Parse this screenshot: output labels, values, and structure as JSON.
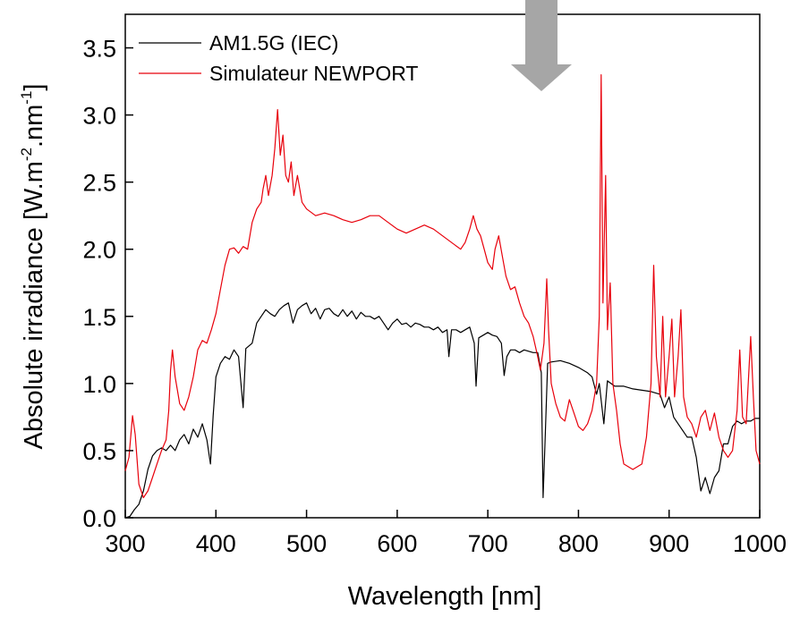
{
  "chart_data": {
    "type": "line",
    "title": "",
    "xlabel": "Wavelength [nm]",
    "ylabel_parts": [
      "Absolute irradiance [W.m",
      "-2",
      ".nm",
      "-1",
      "]"
    ],
    "xlim": [
      300,
      1000
    ],
    "ylim": [
      0.0,
      3.75
    ],
    "xticks": [
      300,
      400,
      500,
      600,
      700,
      800,
      900,
      1000
    ],
    "yticks": [
      "0.0",
      "0.5",
      "1.0",
      "1.5",
      "2.0",
      "2.5",
      "3.0",
      "3.5"
    ],
    "grid": false,
    "legend_position": "top-left",
    "annotation": "gray down-arrow at top near 760 nm",
    "series": [
      {
        "name": "AM1.5G (IEC)",
        "color": "#000000",
        "points": [
          [
            300,
            0.0
          ],
          [
            305,
            0.01
          ],
          [
            310,
            0.06
          ],
          [
            315,
            0.1
          ],
          [
            320,
            0.2
          ],
          [
            325,
            0.36
          ],
          [
            330,
            0.46
          ],
          [
            335,
            0.5
          ],
          [
            340,
            0.52
          ],
          [
            345,
            0.5
          ],
          [
            350,
            0.54
          ],
          [
            355,
            0.5
          ],
          [
            360,
            0.58
          ],
          [
            365,
            0.62
          ],
          [
            370,
            0.55
          ],
          [
            375,
            0.66
          ],
          [
            380,
            0.6
          ],
          [
            385,
            0.7
          ],
          [
            390,
            0.58
          ],
          [
            394,
            0.4
          ],
          [
            397,
            0.76
          ],
          [
            400,
            1.05
          ],
          [
            405,
            1.15
          ],
          [
            410,
            1.2
          ],
          [
            415,
            1.18
          ],
          [
            420,
            1.25
          ],
          [
            425,
            1.2
          ],
          [
            430,
            0.82
          ],
          [
            433,
            1.26
          ],
          [
            440,
            1.3
          ],
          [
            445,
            1.45
          ],
          [
            450,
            1.5
          ],
          [
            455,
            1.55
          ],
          [
            460,
            1.52
          ],
          [
            465,
            1.5
          ],
          [
            470,
            1.55
          ],
          [
            475,
            1.58
          ],
          [
            480,
            1.6
          ],
          [
            485,
            1.45
          ],
          [
            490,
            1.55
          ],
          [
            495,
            1.58
          ],
          [
            500,
            1.6
          ],
          [
            505,
            1.52
          ],
          [
            510,
            1.56
          ],
          [
            515,
            1.48
          ],
          [
            520,
            1.55
          ],
          [
            525,
            1.56
          ],
          [
            530,
            1.52
          ],
          [
            535,
            1.5
          ],
          [
            540,
            1.55
          ],
          [
            545,
            1.5
          ],
          [
            550,
            1.54
          ],
          [
            555,
            1.48
          ],
          [
            560,
            1.53
          ],
          [
            565,
            1.5
          ],
          [
            570,
            1.5
          ],
          [
            575,
            1.48
          ],
          [
            580,
            1.5
          ],
          [
            585,
            1.45
          ],
          [
            590,
            1.4
          ],
          [
            595,
            1.45
          ],
          [
            600,
            1.48
          ],
          [
            605,
            1.44
          ],
          [
            610,
            1.45
          ],
          [
            615,
            1.42
          ],
          [
            620,
            1.45
          ],
          [
            625,
            1.44
          ],
          [
            630,
            1.42
          ],
          [
            635,
            1.42
          ],
          [
            640,
            1.4
          ],
          [
            645,
            1.42
          ],
          [
            650,
            1.38
          ],
          [
            655,
            1.4
          ],
          [
            657,
            1.2
          ],
          [
            660,
            1.4
          ],
          [
            665,
            1.4
          ],
          [
            670,
            1.38
          ],
          [
            675,
            1.4
          ],
          [
            680,
            1.42
          ],
          [
            685,
            1.3
          ],
          [
            687,
            0.98
          ],
          [
            690,
            1.34
          ],
          [
            695,
            1.36
          ],
          [
            700,
            1.38
          ],
          [
            705,
            1.36
          ],
          [
            710,
            1.35
          ],
          [
            715,
            1.3
          ],
          [
            718,
            1.06
          ],
          [
            721,
            1.2
          ],
          [
            725,
            1.25
          ],
          [
            730,
            1.25
          ],
          [
            735,
            1.23
          ],
          [
            740,
            1.25
          ],
          [
            745,
            1.24
          ],
          [
            750,
            1.23
          ],
          [
            755,
            1.23
          ],
          [
            759,
            1.08
          ],
          [
            761,
            0.15
          ],
          [
            763,
            0.55
          ],
          [
            766,
            1.15
          ],
          [
            770,
            1.16
          ],
          [
            780,
            1.17
          ],
          [
            790,
            1.15
          ],
          [
            800,
            1.12
          ],
          [
            810,
            1.08
          ],
          [
            815,
            1.05
          ],
          [
            820,
            0.92
          ],
          [
            823,
            1.0
          ],
          [
            828,
            0.7
          ],
          [
            832,
            1.02
          ],
          [
            840,
            0.98
          ],
          [
            850,
            0.98
          ],
          [
            860,
            0.96
          ],
          [
            870,
            0.95
          ],
          [
            880,
            0.94
          ],
          [
            890,
            0.92
          ],
          [
            895,
            0.82
          ],
          [
            900,
            0.9
          ],
          [
            905,
            0.75
          ],
          [
            910,
            0.7
          ],
          [
            920,
            0.6
          ],
          [
            925,
            0.6
          ],
          [
            930,
            0.45
          ],
          [
            935,
            0.2
          ],
          [
            940,
            0.3
          ],
          [
            945,
            0.18
          ],
          [
            950,
            0.3
          ],
          [
            955,
            0.35
          ],
          [
            960,
            0.55
          ],
          [
            965,
            0.55
          ],
          [
            970,
            0.68
          ],
          [
            975,
            0.72
          ],
          [
            980,
            0.7
          ],
          [
            985,
            0.72
          ],
          [
            990,
            0.72
          ],
          [
            995,
            0.74
          ],
          [
            1000,
            0.74
          ]
        ]
      },
      {
        "name": "Simulateur NEWPORT",
        "color": "#e8000b",
        "points": [
          [
            300,
            0.35
          ],
          [
            304,
            0.45
          ],
          [
            308,
            0.76
          ],
          [
            311,
            0.62
          ],
          [
            315,
            0.25
          ],
          [
            320,
            0.15
          ],
          [
            325,
            0.2
          ],
          [
            330,
            0.3
          ],
          [
            335,
            0.4
          ],
          [
            340,
            0.5
          ],
          [
            345,
            0.58
          ],
          [
            348,
            0.8
          ],
          [
            350,
            1.1
          ],
          [
            352,
            1.25
          ],
          [
            355,
            1.05
          ],
          [
            360,
            0.85
          ],
          [
            365,
            0.8
          ],
          [
            370,
            0.9
          ],
          [
            375,
            1.05
          ],
          [
            380,
            1.25
          ],
          [
            385,
            1.32
          ],
          [
            390,
            1.3
          ],
          [
            395,
            1.4
          ],
          [
            400,
            1.52
          ],
          [
            405,
            1.7
          ],
          [
            410,
            1.88
          ],
          [
            415,
            2.0
          ],
          [
            420,
            2.01
          ],
          [
            425,
            1.97
          ],
          [
            430,
            2.02
          ],
          [
            435,
            2.0
          ],
          [
            440,
            2.2
          ],
          [
            445,
            2.3
          ],
          [
            450,
            2.35
          ],
          [
            452,
            2.45
          ],
          [
            455,
            2.55
          ],
          [
            458,
            2.4
          ],
          [
            462,
            2.55
          ],
          [
            465,
            2.75
          ],
          [
            468,
            3.04
          ],
          [
            471,
            2.7
          ],
          [
            474,
            2.85
          ],
          [
            477,
            2.55
          ],
          [
            480,
            2.5
          ],
          [
            483,
            2.65
          ],
          [
            486,
            2.4
          ],
          [
            490,
            2.55
          ],
          [
            495,
            2.35
          ],
          [
            500,
            2.3
          ],
          [
            510,
            2.25
          ],
          [
            520,
            2.27
          ],
          [
            530,
            2.25
          ],
          [
            540,
            2.22
          ],
          [
            550,
            2.2
          ],
          [
            560,
            2.22
          ],
          [
            570,
            2.25
          ],
          [
            580,
            2.25
          ],
          [
            590,
            2.2
          ],
          [
            600,
            2.15
          ],
          [
            610,
            2.12
          ],
          [
            620,
            2.15
          ],
          [
            630,
            2.18
          ],
          [
            640,
            2.15
          ],
          [
            650,
            2.1
          ],
          [
            660,
            2.05
          ],
          [
            670,
            2.0
          ],
          [
            675,
            2.05
          ],
          [
            680,
            2.15
          ],
          [
            684,
            2.25
          ],
          [
            688,
            2.15
          ],
          [
            692,
            2.1
          ],
          [
            696,
            2.0
          ],
          [
            700,
            1.9
          ],
          [
            705,
            1.85
          ],
          [
            708,
            2.0
          ],
          [
            712,
            2.1
          ],
          [
            716,
            1.95
          ],
          [
            720,
            1.8
          ],
          [
            725,
            1.7
          ],
          [
            730,
            1.72
          ],
          [
            735,
            1.6
          ],
          [
            740,
            1.5
          ],
          [
            745,
            1.45
          ],
          [
            750,
            1.35
          ],
          [
            755,
            1.2
          ],
          [
            758,
            1.1
          ],
          [
            762,
            1.3
          ],
          [
            765,
            1.78
          ],
          [
            767,
            1.4
          ],
          [
            770,
            1.0
          ],
          [
            775,
            0.85
          ],
          [
            780,
            0.75
          ],
          [
            785,
            0.72
          ],
          [
            790,
            0.88
          ],
          [
            795,
            0.78
          ],
          [
            800,
            0.68
          ],
          [
            805,
            0.65
          ],
          [
            810,
            0.7
          ],
          [
            815,
            0.8
          ],
          [
            820,
            1.0
          ],
          [
            823,
            1.5
          ],
          [
            825,
            3.3
          ],
          [
            827,
            1.6
          ],
          [
            830,
            2.55
          ],
          [
            832,
            1.4
          ],
          [
            835,
            1.75
          ],
          [
            838,
            1.0
          ],
          [
            842,
            0.8
          ],
          [
            846,
            0.55
          ],
          [
            850,
            0.4
          ],
          [
            860,
            0.36
          ],
          [
            870,
            0.4
          ],
          [
            875,
            0.6
          ],
          [
            880,
            1.0
          ],
          [
            883,
            1.88
          ],
          [
            886,
            1.2
          ],
          [
            890,
            0.9
          ],
          [
            893,
            1.5
          ],
          [
            896,
            0.9
          ],
          [
            900,
            1.2
          ],
          [
            903,
            1.48
          ],
          [
            906,
            0.9
          ],
          [
            910,
            1.2
          ],
          [
            913,
            1.55
          ],
          [
            916,
            0.9
          ],
          [
            920,
            0.75
          ],
          [
            925,
            0.7
          ],
          [
            930,
            0.6
          ],
          [
            935,
            0.75
          ],
          [
            940,
            0.8
          ],
          [
            945,
            0.65
          ],
          [
            950,
            0.78
          ],
          [
            955,
            0.6
          ],
          [
            960,
            0.5
          ],
          [
            965,
            0.45
          ],
          [
            970,
            0.5
          ],
          [
            975,
            0.8
          ],
          [
            978,
            1.25
          ],
          [
            981,
            0.75
          ],
          [
            985,
            0.7
          ],
          [
            990,
            1.35
          ],
          [
            993,
            0.9
          ],
          [
            996,
            0.5
          ],
          [
            1000,
            0.4
          ]
        ]
      }
    ]
  }
}
